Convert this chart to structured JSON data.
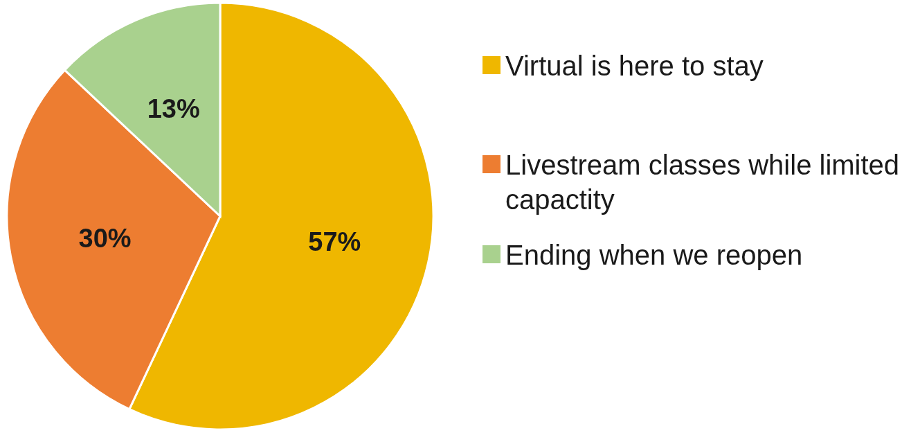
{
  "chart_data": {
    "type": "pie",
    "categories": [
      "Virtual is here to stay",
      "Livestream classes while limited capactity",
      "Ending when we reopen"
    ],
    "values": [
      57,
      30,
      13
    ],
    "colors": [
      "#efb700",
      "#ed7d31",
      "#a9d18e"
    ],
    "value_labels": [
      "57%",
      "30%",
      "13%"
    ],
    "legend": "right"
  }
}
